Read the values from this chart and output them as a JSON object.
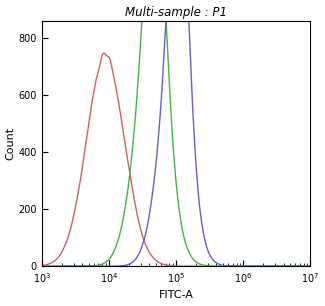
{
  "title": "Multi-sample : P1",
  "xlabel": "FITC-A",
  "ylabel": "Count",
  "xlim_log": [
    3,
    7
  ],
  "ylim": [
    0,
    860
  ],
  "yticks": [
    0,
    200,
    400,
    600,
    800
  ],
  "curves": [
    {
      "color": "#d06060",
      "peak_log": 3.95,
      "sigma_log": 0.28,
      "peak_count": 740,
      "label": "Red",
      "double_peak": false
    },
    {
      "color": "#40b840",
      "peak_log": 4.63,
      "sigma_log": 0.24,
      "peak_count": 740,
      "label": "Green",
      "double_peak": true,
      "peak2_log": 4.7,
      "peak2_count": 680,
      "sigma2_log": 0.14
    },
    {
      "color": "#6060d0",
      "peak_log": 4.97,
      "sigma_log": 0.22,
      "peak_count": 720,
      "label": "Blue",
      "double_peak": true,
      "peak2_log": 5.05,
      "peak2_count": 760,
      "sigma2_log": 0.13
    }
  ],
  "background_color": "#ffffff",
  "title_fontsize": 8.5,
  "axis_fontsize": 8,
  "tick_fontsize": 7,
  "linewidth": 1.0
}
